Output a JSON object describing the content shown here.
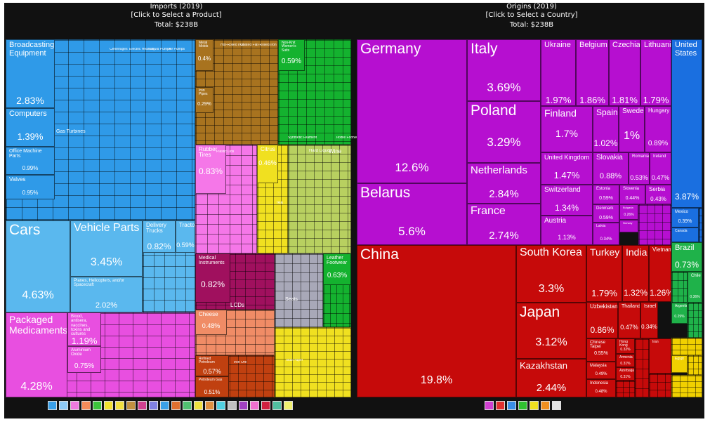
{
  "imports": {
    "title": "Imports (2019)",
    "subtitle": "[Click to Select a Product]",
    "total": "Total: $238B",
    "small_labels": [
      "Gas Turbines",
      "Office Machine Parts",
      "Centrifuges",
      "Delivery Trucks",
      "Tractors",
      "Planes, Helicopters, and/or Spacecraft",
      "Aluminium Oxide",
      "Rubber Tires",
      "Hard Liquor",
      "Wine",
      "Citrus",
      "Tea",
      "Cheese",
      "Seats",
      "Medical Instruments",
      "LCDs",
      "Leather Footwear",
      "Refined Petroleum",
      "Petroleum Gas",
      "Iron Ore",
      "Total Paper",
      "Orthopedic Appliances",
      "Plastic Lids",
      "Non-Knit Women's Suits",
      "Synthetic Filament",
      "Textile Footwear",
      "Iron Pipes",
      "Coated Flat-Rolled Iron",
      "Hot-Rolled Iron",
      "Metal Molds",
      "Valves",
      "Liquid Pumps",
      "Air Pumps",
      "Electric Heaters"
    ],
    "icon_colors": [
      "#3aa0e8",
      "#8ecaf5",
      "#f07be0",
      "#f58c5a",
      "#3cc43c",
      "#f2e130",
      "#f0e040",
      "#c09040",
      "#d04090",
      "#8080e0",
      "#3aa0e8",
      "#e07030",
      "#50c070",
      "#f0e040",
      "#e09040",
      "#50d0e0",
      "#c0c0c0",
      "#a040c0",
      "#f070d0",
      "#d02040",
      "#50c0a0",
      "#f0f070"
    ]
  },
  "origins": {
    "title": "Origins (2019)",
    "subtitle": "[Click to Select a Country]",
    "total": "Total: $238B",
    "icon_colors": [
      "#d040d0",
      "#e03030",
      "#3a8ee8",
      "#30c030",
      "#f0e020",
      "#f09020",
      "#e0e0e0"
    ]
  },
  "chart_data": [
    {
      "type": "treemap",
      "title": "Imports (2019)",
      "total": "$238B",
      "items": [
        {
          "name": "Broadcasting Equipment",
          "value": 2.83
        },
        {
          "name": "Computers",
          "value": 1.39
        },
        {
          "name": "Office Machine Parts",
          "value": 0.99
        },
        {
          "name": "Valves",
          "value": 0.95
        },
        {
          "name": "Cars",
          "value": 4.63
        },
        {
          "name": "Vehicle Parts",
          "value": 3.45
        },
        {
          "name": "Planes, Helicopters, and/or Spacecraft",
          "value": 2.02
        },
        {
          "name": "Delivery Trucks",
          "value": 0.82
        },
        {
          "name": "Tractors",
          "value": 0.59
        },
        {
          "name": "Packaged Medicaments",
          "value": 4.28
        },
        {
          "name": "Blood, antisera, vaccines, toxins and cultures",
          "value": 1.19
        },
        {
          "name": "Aluminium Oxide",
          "value": 0.75
        },
        {
          "name": "Rubber Tires",
          "value": 0.83
        },
        {
          "name": "Citrus",
          "value": 0.46
        },
        {
          "name": "Medical Instruments",
          "value": 0.82
        },
        {
          "name": "Cheese",
          "value": 0.48
        },
        {
          "name": "Leather Footwear",
          "value": 0.63
        },
        {
          "name": "Refined Petroleum",
          "value": 0.57
        },
        {
          "name": "Petroleum Gas",
          "value": 0.51
        },
        {
          "name": "Non-Knit Women's Suits",
          "value": 0.59
        },
        {
          "name": "Metal Molds",
          "value": 0.4
        },
        {
          "name": "Iron Pipes",
          "value": 0.29
        }
      ]
    },
    {
      "type": "treemap",
      "title": "Origins (2019)",
      "total": "$238B",
      "items": [
        {
          "name": "Germany",
          "value": 12.6,
          "color": "#b60fd0"
        },
        {
          "name": "Belarus",
          "value": 5.6,
          "color": "#b60fd0"
        },
        {
          "name": "Italy",
          "value": 3.69,
          "color": "#b60fd0"
        },
        {
          "name": "Poland",
          "value": 3.29,
          "color": "#b60fd0"
        },
        {
          "name": "Netherlands",
          "value": 2.84,
          "color": "#b60fd0"
        },
        {
          "name": "France",
          "value": 2.74,
          "color": "#b60fd0"
        },
        {
          "name": "Ukraine",
          "value": 1.97,
          "color": "#b60fd0"
        },
        {
          "name": "Belgium",
          "value": 1.86,
          "color": "#b60fd0"
        },
        {
          "name": "Czechia",
          "value": 1.81,
          "color": "#b60fd0"
        },
        {
          "name": "Lithuania",
          "value": 1.79,
          "color": "#b60fd0"
        },
        {
          "name": "Finland",
          "value": 1.7,
          "color": "#b60fd0"
        },
        {
          "name": "Spain",
          "value": 1.02,
          "color": "#b60fd0"
        },
        {
          "name": "Sweden",
          "value": 1,
          "color": "#b60fd0"
        },
        {
          "name": "Hungary",
          "value": 0.89,
          "color": "#b60fd0"
        },
        {
          "name": "United Kingdom",
          "value": 1.47,
          "color": "#b60fd0"
        },
        {
          "name": "Slovakia",
          "value": 0.88,
          "color": "#b60fd0"
        },
        {
          "name": "Romania",
          "value": 0.53,
          "color": "#b60fd0"
        },
        {
          "name": "Ireland",
          "value": 0.47,
          "color": "#b60fd0"
        },
        {
          "name": "Switzerland",
          "value": 1.34,
          "color": "#b60fd0"
        },
        {
          "name": "Estonia",
          "value": 0.59,
          "color": "#b60fd0"
        },
        {
          "name": "Slovenia",
          "value": 0.44,
          "color": "#b60fd0"
        },
        {
          "name": "Serbia",
          "value": 0.43,
          "color": "#b60fd0"
        },
        {
          "name": "Denmark",
          "value": 0.59,
          "color": "#b60fd0"
        },
        {
          "name": "Bulgaria",
          "value": 0.26,
          "color": "#b60fd0"
        },
        {
          "name": "Norway",
          "value": null,
          "color": "#b60fd0"
        },
        {
          "name": "Austria",
          "value": 1.13,
          "color": "#b60fd0"
        },
        {
          "name": "Latvia",
          "value": 0.34,
          "color": "#b60fd0"
        },
        {
          "name": "China",
          "value": 19.8,
          "color": "#c60a0a"
        },
        {
          "name": "South Korea",
          "value": 3.3,
          "color": "#c60a0a"
        },
        {
          "name": "Japan",
          "value": 3.12,
          "color": "#c60a0a"
        },
        {
          "name": "Kazakhstan",
          "value": 2.44,
          "color": "#c60a0a"
        },
        {
          "name": "Turkey",
          "value": 1.79,
          "color": "#c60a0a"
        },
        {
          "name": "India",
          "value": 1.32,
          "color": "#c60a0a"
        },
        {
          "name": "Vietnam",
          "value": 1.26,
          "color": "#c60a0a"
        },
        {
          "name": "Uzbekistan",
          "value": 0.86,
          "color": "#c60a0a"
        },
        {
          "name": "Thailand",
          "value": 0.47,
          "color": "#c60a0a"
        },
        {
          "name": "Israel",
          "value": 0.34,
          "color": "#c60a0a"
        },
        {
          "name": "Chinese Taipei",
          "value": 0.55,
          "color": "#c60a0a"
        },
        {
          "name": "Hong Kong",
          "value": 0.32,
          "color": "#c60a0a"
        },
        {
          "name": "Malaysia",
          "value": 0.49,
          "color": "#c60a0a"
        },
        {
          "name": "Armenia",
          "value": 0.31,
          "color": "#c60a0a"
        },
        {
          "name": "Azerbaijan",
          "value": 0.31,
          "color": "#c60a0a"
        },
        {
          "name": "Indonesia",
          "value": 0.48,
          "color": "#c60a0a"
        },
        {
          "name": "Iran",
          "value": null,
          "color": "#c60a0a"
        },
        {
          "name": "United States",
          "value": 3.87,
          "color": "#1a6fe0"
        },
        {
          "name": "Mexico",
          "value": 0.39,
          "color": "#1a6fe0"
        },
        {
          "name": "Canada",
          "value": null,
          "color": "#1a6fe0"
        },
        {
          "name": "Brazil",
          "value": 0.73,
          "color": "#1fb24a"
        },
        {
          "name": "Chile",
          "value": 0.36,
          "color": "#1fb24a"
        },
        {
          "name": "Argentina",
          "value": 0.29,
          "color": "#1fb24a"
        },
        {
          "name": "Egypt",
          "value": null,
          "color": "#f0d000"
        },
        {
          "name": "South Africa",
          "value": null,
          "color": "#f0d000"
        }
      ]
    }
  ]
}
